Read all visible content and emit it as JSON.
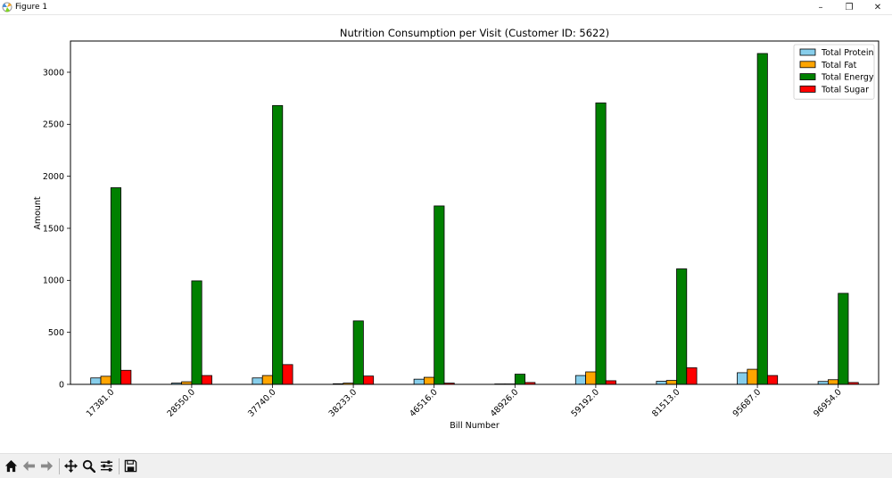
{
  "window": {
    "title": "Figure 1",
    "minimize_label": "–",
    "restore_label": "❐",
    "close_label": "✕"
  },
  "toolbar": {
    "icons": [
      "home-icon",
      "back-arrow-icon",
      "forward-arrow-icon",
      "pan-icon",
      "zoom-icon",
      "configure-subplots-icon",
      "save-icon"
    ]
  },
  "chart_data": {
    "type": "bar",
    "title": "Nutrition Consumption per Visit (Customer ID: 5622)",
    "xlabel": "Bill Number",
    "ylabel": "Amount",
    "ylim": [
      0,
      3300
    ],
    "yticks": [
      0,
      500,
      1000,
      1500,
      2000,
      2500,
      3000
    ],
    "grid": false,
    "legend_position": "top-right",
    "categories": [
      "17381.0",
      "28550.0",
      "37740.0",
      "38233.0",
      "46516.0",
      "48926.0",
      "59192.0",
      "81513.0",
      "95687.0",
      "96954.0"
    ],
    "series": [
      {
        "name": "Total Protein",
        "color": "#87ceeb",
        "values": [
          62,
          12,
          62,
          6,
          50,
          4,
          85,
          30,
          112,
          28
        ]
      },
      {
        "name": "Total Fat",
        "color": "#ffa500",
        "values": [
          78,
          25,
          85,
          12,
          68,
          4,
          120,
          38,
          145,
          45
        ]
      },
      {
        "name": "Total Energy",
        "color": "#008000",
        "values": [
          1890,
          995,
          2680,
          610,
          1715,
          98,
          2705,
          1110,
          3180,
          875
        ]
      },
      {
        "name": "Total Sugar",
        "color": "#ff0000",
        "values": [
          135,
          85,
          190,
          80,
          12,
          18,
          35,
          160,
          85,
          18
        ]
      }
    ]
  }
}
